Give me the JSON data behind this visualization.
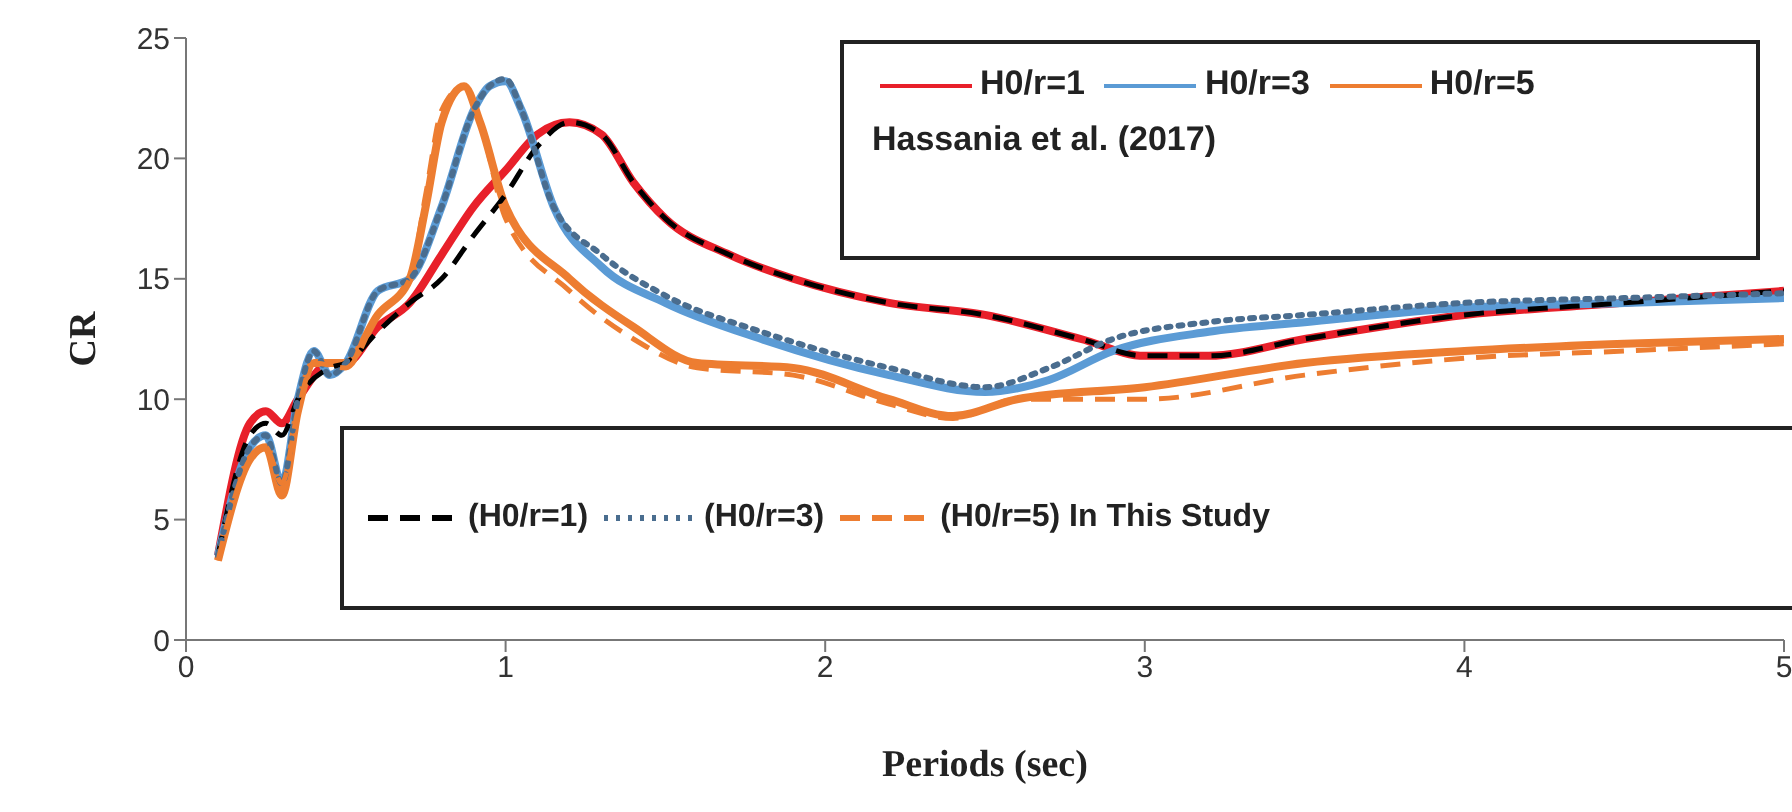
{
  "chart_data": {
    "type": "line",
    "xlabel": "Periods (sec)",
    "ylabel": "CR",
    "xlim": [
      0,
      5
    ],
    "xticks": [
      0,
      1,
      2,
      3,
      4,
      5
    ],
    "ylim": [
      0,
      25
    ],
    "yticks": [
      0,
      5,
      10,
      15,
      20,
      25
    ],
    "grid": false,
    "legend": "top right",
    "marker": "none",
    "annotations": [
      "Hassania et al. (2017)"
    ],
    "series": [
      {
        "name": "H0/r=1",
        "color": "#e8202a",
        "line_style": "solid",
        "x": [
          0.1,
          0.2,
          0.25,
          0.3,
          0.35,
          0.45,
          0.5,
          0.6,
          0.7,
          0.8,
          0.9,
          1.0,
          1.1,
          1.2,
          1.3,
          1.4,
          1.5,
          1.7,
          1.9,
          2.2,
          2.5,
          2.8,
          3.0,
          3.2,
          3.5,
          4.0,
          4.5,
          5.0
        ],
        "values": [
          3.5,
          9,
          9.5,
          9,
          10,
          11.5,
          11.5,
          13,
          14,
          16,
          18,
          19.5,
          21,
          21.5,
          21,
          19,
          17.5,
          16,
          15,
          14,
          13.5,
          12.5,
          11.8,
          11.8,
          12.5,
          13.5,
          14,
          14.5
        ]
      },
      {
        "name": "H0/r=3",
        "color": "#5b9bd5",
        "line_style": "solid",
        "x": [
          0.1,
          0.2,
          0.25,
          0.3,
          0.35,
          0.4,
          0.45,
          0.5,
          0.6,
          0.7,
          0.8,
          0.9,
          0.95,
          1.0,
          1.05,
          1.15,
          1.3,
          1.5,
          1.8,
          2.2,
          2.5,
          2.7,
          2.9,
          3.2,
          3.5,
          4.0,
          4.5,
          5.0
        ],
        "values": [
          3.5,
          8,
          8.5,
          6.5,
          10,
          12,
          11,
          11.5,
          14.5,
          15,
          18,
          22,
          23,
          23.2,
          22,
          18,
          15.5,
          14,
          12.5,
          11,
          10.3,
          10.8,
          12,
          12.8,
          13.2,
          13.8,
          14,
          14.2
        ]
      },
      {
        "name": "H0/r=5",
        "color": "#ed7d31",
        "line_style": "solid",
        "x": [
          0.1,
          0.2,
          0.25,
          0.3,
          0.35,
          0.4,
          0.5,
          0.6,
          0.7,
          0.75,
          0.8,
          0.87,
          0.92,
          1.0,
          1.2,
          1.4,
          1.6,
          1.9,
          2.2,
          2.4,
          2.6,
          3.0,
          3.5,
          4.0,
          4.5,
          5.0
        ],
        "values": [
          3.3,
          7.5,
          8,
          6,
          9.5,
          11.5,
          11.5,
          13.5,
          15,
          18,
          21.5,
          23,
          21.5,
          18,
          15,
          13,
          11.5,
          11.3,
          10,
          9.3,
          10,
          10.5,
          11.5,
          12,
          12.3,
          12.5
        ]
      },
      {
        "name": "(H0/r=1)",
        "color": "#000000",
        "line_style": "dashed",
        "x": [
          0.1,
          0.2,
          0.25,
          0.3,
          0.35,
          0.45,
          0.5,
          0.6,
          0.7,
          0.8,
          0.9,
          1.0,
          1.1,
          1.2,
          1.3,
          1.4,
          1.5,
          1.7,
          1.9,
          2.2,
          2.5,
          2.8,
          3.0,
          3.2,
          3.5,
          4.0,
          4.5,
          5.0
        ],
        "values": [
          3.5,
          8.5,
          9,
          8.5,
          10,
          11.3,
          11.5,
          12.8,
          14,
          15,
          16.8,
          18.5,
          20.5,
          21.5,
          21,
          19,
          17.5,
          16,
          15,
          14,
          13.5,
          12.5,
          11.8,
          11.8,
          12.5,
          13.5,
          14,
          14.5
        ]
      },
      {
        "name": "(H0/r=3)",
        "color": "#4a6d8f",
        "line_style": "dotted",
        "x": [
          0.1,
          0.2,
          0.25,
          0.3,
          0.35,
          0.4,
          0.45,
          0.5,
          0.6,
          0.7,
          0.8,
          0.9,
          0.95,
          1.0,
          1.05,
          1.15,
          1.3,
          1.5,
          1.8,
          2.2,
          2.5,
          2.7,
          2.9,
          3.2,
          3.5,
          4.0,
          4.5,
          5.0
        ],
        "values": [
          3.5,
          8,
          8.5,
          6.5,
          10,
          12,
          11,
          11.5,
          14.5,
          15,
          18,
          22,
          23,
          23.3,
          22,
          18,
          16,
          14.3,
          12.8,
          11.3,
          10.5,
          11.3,
          12.5,
          13.2,
          13.5,
          14,
          14.2,
          14.4
        ]
      },
      {
        "name": "(H0/r=5) In This Study",
        "color": "#ed7d31",
        "line_style": "dashed",
        "x": [
          0.1,
          0.2,
          0.25,
          0.3,
          0.35,
          0.4,
          0.5,
          0.6,
          0.7,
          0.75,
          0.8,
          0.87,
          0.92,
          1.0,
          1.2,
          1.4,
          1.6,
          1.9,
          2.2,
          2.4,
          2.6,
          3.0,
          3.5,
          4.0,
          4.5,
          5.0
        ],
        "values": [
          3.3,
          7.5,
          8,
          6.5,
          9.5,
          11.5,
          11.3,
          13.5,
          15,
          18.5,
          22,
          23,
          21.5,
          17.5,
          14.5,
          12.5,
          11.3,
          11,
          9.8,
          9.2,
          10,
          10,
          11,
          11.7,
          12,
          12.3
        ]
      }
    ]
  }
}
